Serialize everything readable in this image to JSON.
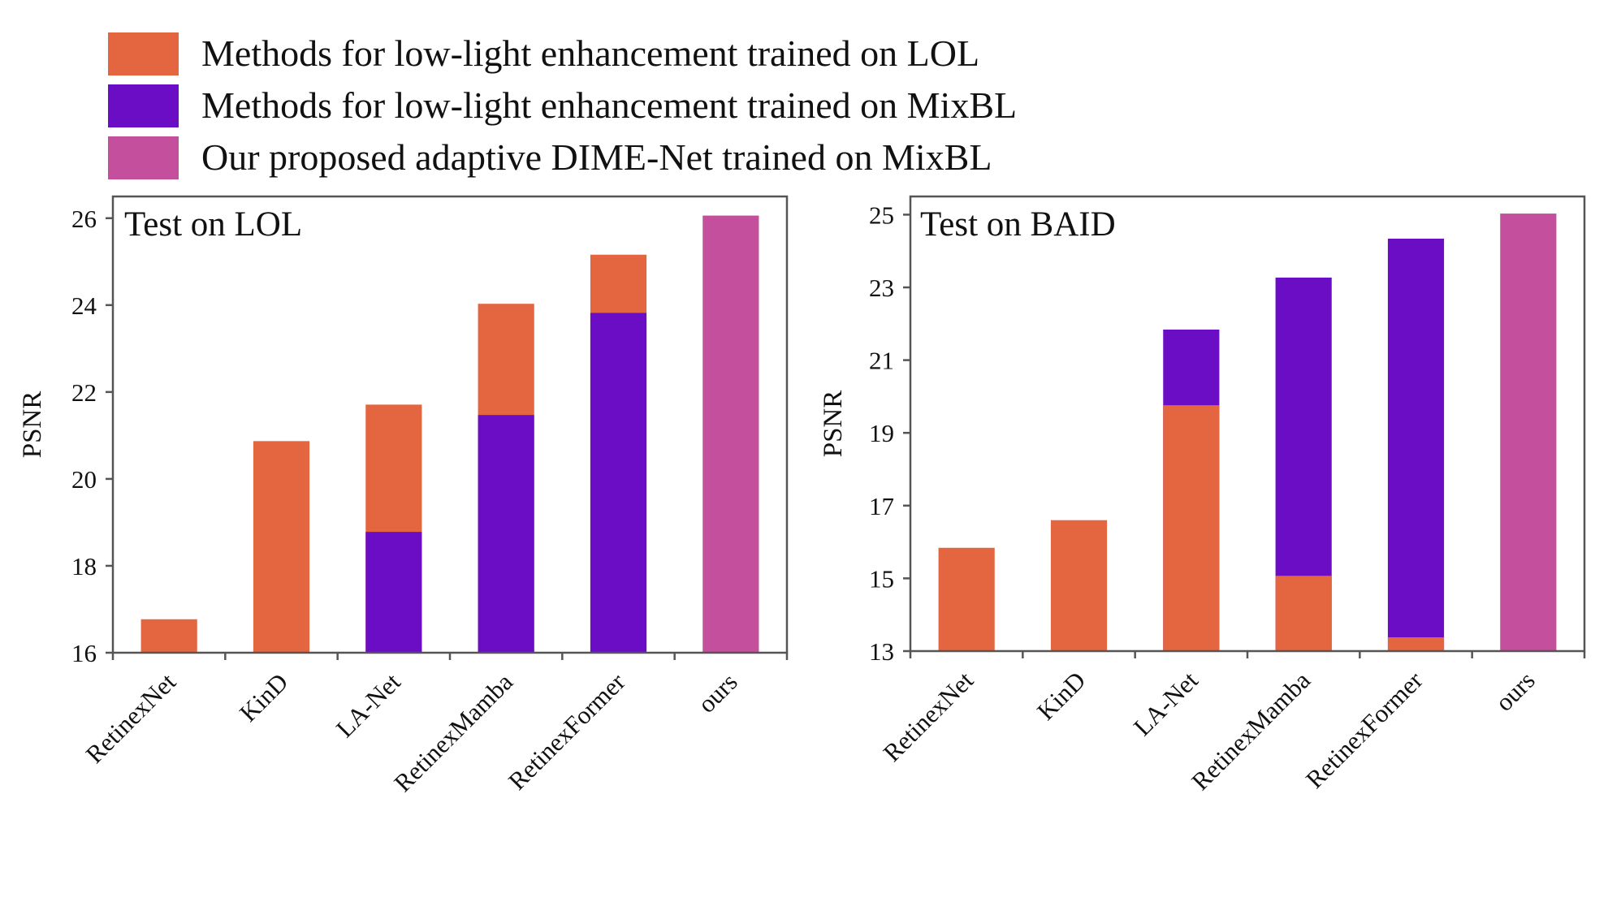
{
  "legend": [
    {
      "label": "Methods for low-light enhancement trained on LOL",
      "color": "#E46641"
    },
    {
      "label": "Methods for low-light enhancement trained on MixBL",
      "color": "#6A0DC5"
    },
    {
      "label": "Our proposed adaptive DIME-Net trained on MixBL",
      "color": "#C44F9C"
    }
  ],
  "chart_data": [
    {
      "type": "bar",
      "stacked": "overlay",
      "title": "Test on LOL",
      "xlabel": "",
      "ylabel": "PSNR",
      "ylim": [
        16,
        26.5
      ],
      "yticks": [
        16,
        18,
        20,
        22,
        24,
        26
      ],
      "categories": [
        "RetinexNet",
        "KinD",
        "LA-Net",
        "RetinexMamba",
        "RetinexFormer",
        "ours"
      ],
      "series": [
        {
          "name": "Methods for low-light enhancement trained on LOL",
          "color": "#E46641",
          "values": [
            16.77,
            20.87,
            21.71,
            24.03,
            25.16,
            null
          ]
        },
        {
          "name": "Methods for low-light enhancement trained on MixBL",
          "color": "#6A0DC5",
          "values": [
            null,
            null,
            18.78,
            21.47,
            23.82,
            null
          ]
        },
        {
          "name": "Our proposed adaptive DIME-Net trained on MixBL",
          "color": "#C44F9C",
          "values": [
            null,
            null,
            null,
            null,
            null,
            26.06
          ]
        }
      ]
    },
    {
      "type": "bar",
      "stacked": "overlay",
      "title": "Test on BAID",
      "xlabel": "",
      "ylabel": "PSNR",
      "ylim": [
        13,
        25.5
      ],
      "yticks": [
        13,
        15,
        17,
        19,
        21,
        23,
        25
      ],
      "categories": [
        "RetinexNet",
        "KinD",
        "LA-Net",
        "RetinexMamba",
        "RetinexFormer",
        "ours"
      ],
      "series": [
        {
          "name": "Methods for low-light enhancement trained on LOL",
          "color": "#E46641",
          "values": [
            15.84,
            16.6,
            19.76,
            15.07,
            13.38,
            null
          ]
        },
        {
          "name": "Methods for low-light enhancement trained on MixBL",
          "color": "#6A0DC5",
          "values": [
            null,
            null,
            21.84,
            23.27,
            24.34,
            null
          ]
        },
        {
          "name": "Our proposed adaptive DIME-Net trained on MixBL",
          "color": "#C44F9C",
          "values": [
            null,
            null,
            null,
            null,
            null,
            25.03
          ]
        }
      ]
    }
  ]
}
